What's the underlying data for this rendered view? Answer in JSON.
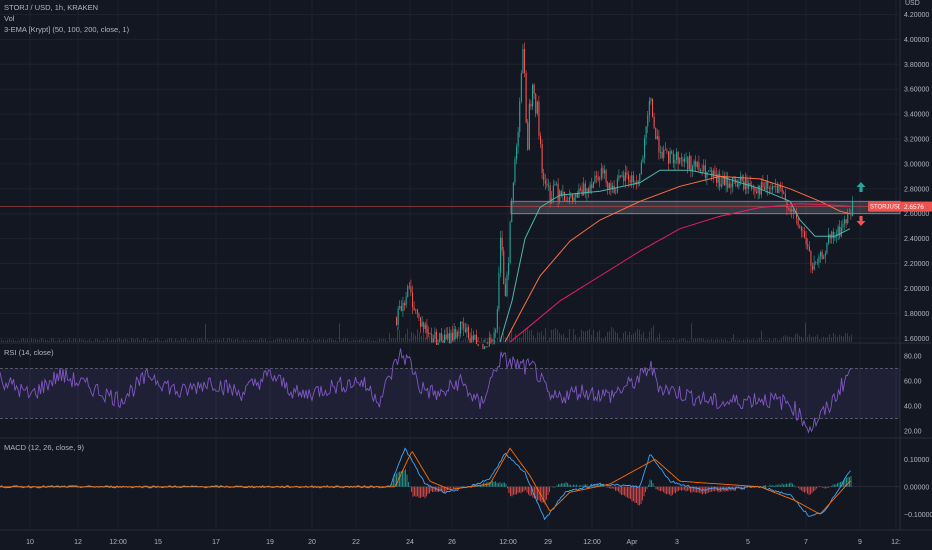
{
  "symbol": {
    "pair": "STORJ / USD",
    "interval": "1h",
    "exchange": "KRAKEN"
  },
  "vol_label": "Vol",
  "ema_label": "3-EMA [Krypt] (50, 100, 200, close, 1)",
  "rsi_label": "RSI (14, close)",
  "macd_label": "MACD (12, 26, close, 9)",
  "price_tag": {
    "text": "STORJUSD",
    "value": "2.6576"
  },
  "currency_label": "USD",
  "colors": {
    "background": "#131722",
    "up": "#26a69a",
    "down": "#ef5350",
    "ema50": "#4db6ac",
    "ema100": "#ff7043",
    "ema200": "#e91e63",
    "rsi": "#7e57c2",
    "macd": "#42a5f5",
    "signal": "#ff6d00",
    "zone": "#d1d4dc"
  },
  "chart_data": [
    {
      "type": "candlestick",
      "title": "STORJ / USD, 1h, KRAKEN",
      "x_ticks": [
        "10",
        "12",
        "12:00",
        "15",
        "17",
        "19",
        "20",
        "22",
        "24",
        "26",
        "12:00",
        "29",
        "12:00",
        "Apr",
        "3",
        "5",
        "7",
        "9",
        "12:"
      ],
      "y_ticks": [
        1.6,
        1.8,
        2.0,
        2.2,
        2.4,
        2.6,
        2.8,
        3.0,
        3.2,
        3.4,
        3.6,
        3.8,
        4.0,
        4.2
      ],
      "ylim": [
        1.57,
        4.22
      ],
      "current_price": 2.6576,
      "zone": [
        2.6,
        2.7
      ],
      "price_path": [
        [
          0,
          1.5
        ],
        [
          80,
          1.5
        ],
        [
          152,
          1.5
        ],
        [
          220,
          1.5
        ],
        [
          300,
          1.5
        ],
        [
          380,
          1.5
        ],
        [
          398,
          1.8
        ],
        [
          408,
          2.0
        ],
        [
          418,
          1.75
        ],
        [
          430,
          1.62
        ],
        [
          445,
          1.58
        ],
        [
          460,
          1.68
        ],
        [
          480,
          1.55
        ],
        [
          495,
          1.62
        ],
        [
          500,
          2.3
        ],
        [
          505,
          2.0
        ],
        [
          512,
          2.75
        ],
        [
          518,
          3.4
        ],
        [
          522,
          3.9
        ],
        [
          527,
          3.2
        ],
        [
          532,
          3.75
        ],
        [
          538,
          3.3
        ],
        [
          545,
          2.75
        ],
        [
          555,
          2.85
        ],
        [
          570,
          2.7
        ],
        [
          585,
          2.8
        ],
        [
          600,
          2.95
        ],
        [
          612,
          2.8
        ],
        [
          625,
          2.9
        ],
        [
          638,
          2.85
        ],
        [
          645,
          3.2
        ],
        [
          650,
          3.55
        ],
        [
          655,
          3.2
        ],
        [
          665,
          3.05
        ],
        [
          680,
          3.05
        ],
        [
          700,
          2.95
        ],
        [
          720,
          2.85
        ],
        [
          740,
          2.85
        ],
        [
          760,
          2.8
        ],
        [
          775,
          2.8
        ],
        [
          785,
          2.72
        ],
        [
          795,
          2.55
        ],
        [
          805,
          2.4
        ],
        [
          812,
          2.15
        ],
        [
          818,
          2.2
        ],
        [
          828,
          2.38
        ],
        [
          838,
          2.45
        ],
        [
          848,
          2.58
        ],
        [
          852,
          2.68
        ]
      ],
      "ema50": [
        [
          500,
          1.57
        ],
        [
          512,
          1.9
        ],
        [
          525,
          2.4
        ],
        [
          540,
          2.65
        ],
        [
          560,
          2.75
        ],
        [
          600,
          2.78
        ],
        [
          640,
          2.85
        ],
        [
          660,
          2.95
        ],
        [
          690,
          2.95
        ],
        [
          720,
          2.9
        ],
        [
          760,
          2.8
        ],
        [
          790,
          2.7
        ],
        [
          800,
          2.55
        ],
        [
          815,
          2.42
        ],
        [
          835,
          2.42
        ],
        [
          850,
          2.48
        ]
      ],
      "ema100": [
        [
          505,
          1.57
        ],
        [
          520,
          1.8
        ],
        [
          540,
          2.1
        ],
        [
          570,
          2.38
        ],
        [
          600,
          2.55
        ],
        [
          640,
          2.7
        ],
        [
          680,
          2.82
        ],
        [
          720,
          2.9
        ],
        [
          760,
          2.88
        ],
        [
          790,
          2.8
        ],
        [
          820,
          2.7
        ],
        [
          840,
          2.62
        ],
        [
          850,
          2.6
        ]
      ],
      "ema200": [
        [
          510,
          1.57
        ],
        [
          530,
          1.7
        ],
        [
          560,
          1.9
        ],
        [
          600,
          2.1
        ],
        [
          640,
          2.3
        ],
        [
          680,
          2.48
        ],
        [
          720,
          2.58
        ],
        [
          760,
          2.65
        ],
        [
          800,
          2.68
        ],
        [
          830,
          2.67
        ],
        [
          850,
          2.66
        ]
      ]
    },
    {
      "type": "line",
      "title": "RSI (14, close)",
      "y_ticks": [
        20,
        40,
        60,
        80
      ],
      "ylim": [
        15,
        88
      ],
      "bands": [
        30,
        70
      ],
      "series": [
        {
          "points": [
            [
              0,
              62
            ],
            [
              30,
              48
            ],
            [
              60,
              65
            ],
            [
              90,
              55
            ],
            [
              120,
              45
            ],
            [
              150,
              65
            ],
            [
              180,
              50
            ],
            [
              210,
              60
            ],
            [
              240,
              50
            ],
            [
              270,
              65
            ],
            [
              300,
              48
            ],
            [
              330,
              55
            ],
            [
              360,
              60
            ],
            [
              380,
              45
            ],
            [
              400,
              82
            ],
            [
              410,
              75
            ],
            [
              420,
              55
            ],
            [
              440,
              48
            ],
            [
              460,
              60
            ],
            [
              480,
              40
            ],
            [
              500,
              78
            ],
            [
              520,
              72
            ],
            [
              535,
              70
            ],
            [
              550,
              45
            ],
            [
              580,
              52
            ],
            [
              610,
              48
            ],
            [
              640,
              62
            ],
            [
              650,
              72
            ],
            [
              660,
              55
            ],
            [
              690,
              48
            ],
            [
              720,
              42
            ],
            [
              760,
              46
            ],
            [
              790,
              42
            ],
            [
              810,
              22
            ],
            [
              830,
              40
            ],
            [
              850,
              68
            ]
          ]
        }
      ]
    },
    {
      "type": "line",
      "title": "MACD (12, 26, close, 9)",
      "y_ticks": [
        0.1,
        0.0,
        -0.1
      ],
      "ylim": [
        -0.15,
        0.17
      ],
      "series": [
        {
          "points": [
            [
              0,
              0
            ],
            [
              150,
              0
            ],
            [
              300,
              0
            ],
            [
              390,
              0
            ],
            [
              405,
              0.14
            ],
            [
              425,
              0.01
            ],
            [
              445,
              -0.02
            ],
            [
              470,
              0
            ],
            [
              490,
              0.03
            ],
            [
              505,
              0.12
            ],
            [
              525,
              0.05
            ],
            [
              545,
              -0.12
            ],
            [
              565,
              -0.02
            ],
            [
              600,
              0.01
            ],
            [
              640,
              0
            ],
            [
              650,
              0.12
            ],
            [
              670,
              0.02
            ],
            [
              700,
              -0.01
            ],
            [
              760,
              0
            ],
            [
              790,
              -0.03
            ],
            [
              810,
              -0.11
            ],
            [
              825,
              -0.09
            ],
            [
              850,
              0.06
            ]
          ]
        },
        {
          "points": [
            [
              0,
              0
            ],
            [
              150,
              0
            ],
            [
              300,
              0
            ],
            [
              395,
              0
            ],
            [
              412,
              0.13
            ],
            [
              430,
              0.02
            ],
            [
              450,
              -0.01
            ],
            [
              490,
              0.01
            ],
            [
              510,
              0.14
            ],
            [
              530,
              0.04
            ],
            [
              550,
              -0.09
            ],
            [
              570,
              -0.02
            ],
            [
              610,
              0.01
            ],
            [
              655,
              0.1
            ],
            [
              680,
              0.02
            ],
            [
              760,
              0
            ],
            [
              795,
              -0.05
            ],
            [
              820,
              -0.1
            ],
            [
              850,
              0.02
            ]
          ]
        }
      ]
    }
  ]
}
